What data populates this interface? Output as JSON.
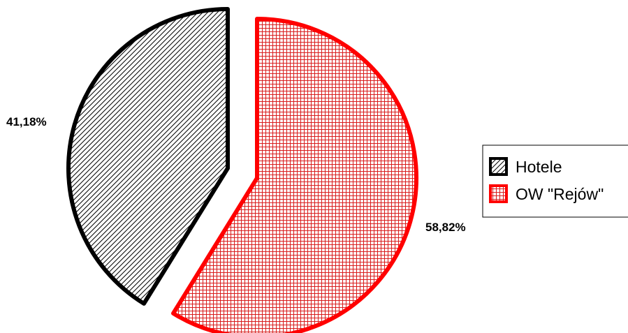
{
  "chart_data": {
    "type": "pie",
    "title": "",
    "exploded": true,
    "legend_position": "right",
    "slices": [
      {
        "label": "OW \"Rejów\"",
        "value": 58.82,
        "value_label": "58,82%",
        "color": "#ff0000",
        "pattern": "grid"
      },
      {
        "label": "Hotele",
        "value": 41.18,
        "value_label": "41,18%",
        "color": "#000000",
        "pattern": "diagonal"
      }
    ]
  }
}
